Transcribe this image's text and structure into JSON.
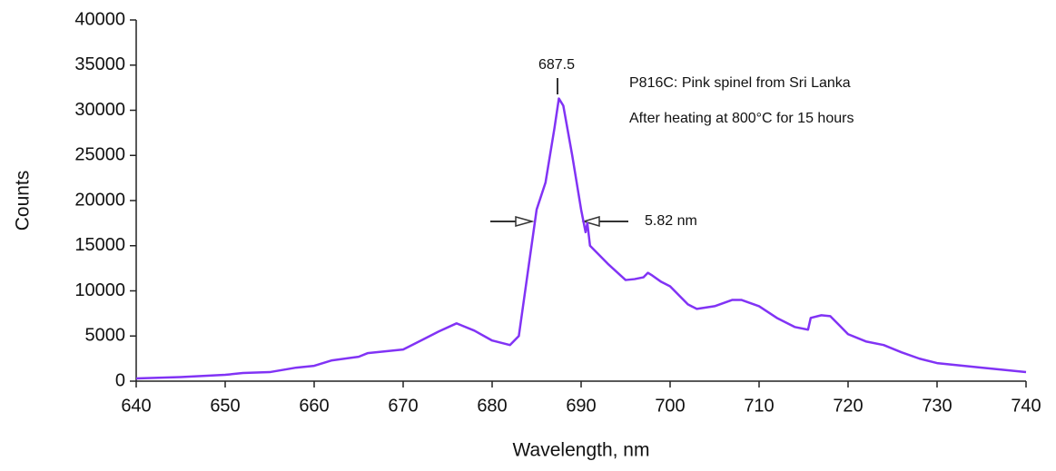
{
  "chart_data": {
    "type": "line",
    "x_label": "Wavelength, nm",
    "y_label": "Counts",
    "annotations": [
      "687.5",
      "P816C: Pink spinel from Sri Lanka",
      "After heating at 800°C for 15 hours",
      "5.82 nm"
    ],
    "x": [
      640,
      645,
      650,
      652,
      655,
      658,
      660,
      662,
      665,
      666,
      668,
      670,
      672,
      674,
      676,
      678,
      680,
      682,
      683,
      684,
      685,
      686,
      687,
      687.5,
      688,
      689,
      690,
      690.5,
      690.7,
      691,
      693,
      695,
      696,
      697,
      697.5,
      698,
      699,
      700,
      702,
      703,
      705,
      707,
      708,
      710,
      712,
      714,
      715.5,
      715.8,
      717,
      718,
      719,
      720,
      722,
      724,
      726,
      728,
      730,
      735,
      740
    ],
    "series": [
      {
        "name": "P816C",
        "color": "#8133f5",
        "values": [
          300,
          450,
          700,
          900,
          1000,
          1500,
          1700,
          2300,
          2700,
          3100,
          3300,
          3500,
          4500,
          5500,
          6400,
          5600,
          4500,
          4000,
          5000,
          12000,
          19000,
          22000,
          28000,
          31300,
          30500,
          25000,
          19000,
          16500,
          17500,
          15000,
          13000,
          11200,
          11300,
          11500,
          12000,
          11700,
          11000,
          10500,
          8500,
          8000,
          8300,
          9000,
          9000,
          8300,
          7000,
          6000,
          5700,
          7000,
          7300,
          7200,
          6200,
          5200,
          4400,
          4000,
          3200,
          2500,
          2000,
          1500,
          1000
        ]
      }
    ],
    "xlim": [
      640,
      740
    ],
    "xticks": [
      640,
      650,
      660,
      670,
      680,
      690,
      700,
      710,
      720,
      730,
      740
    ],
    "ylim": [
      0,
      40000
    ],
    "yticks": [
      0,
      5000,
      10000,
      15000,
      20000,
      25000,
      30000,
      35000,
      40000
    ],
    "grid": false
  }
}
